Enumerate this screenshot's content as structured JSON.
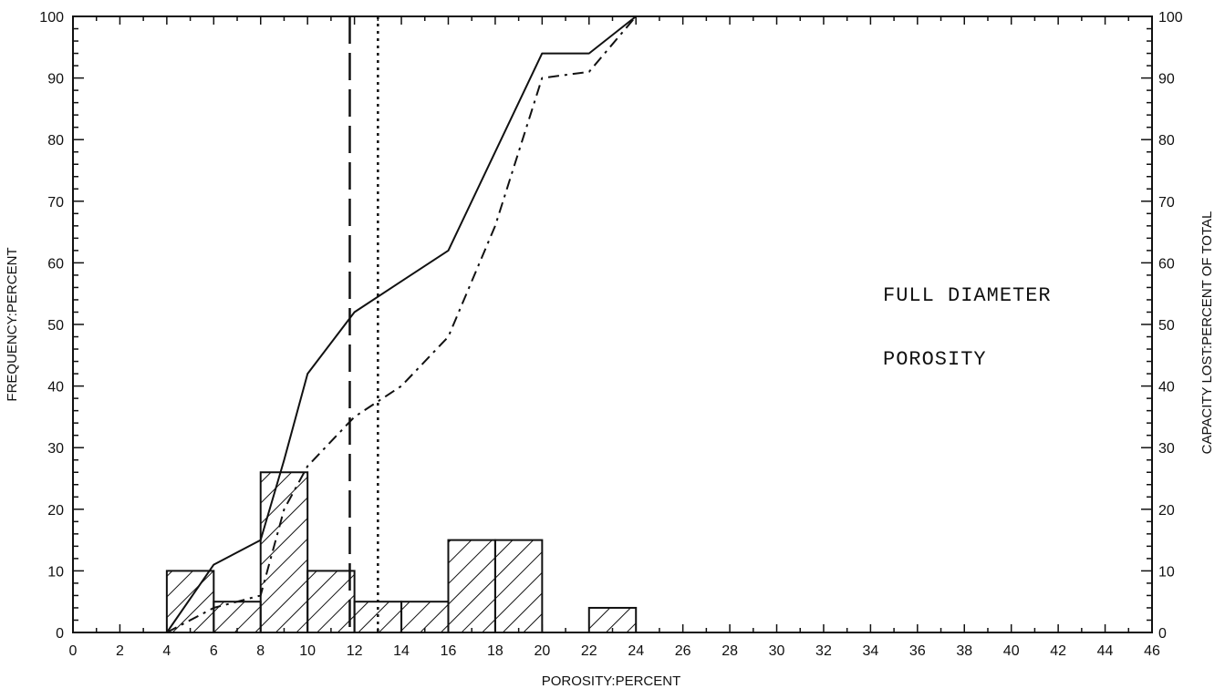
{
  "chart_data": {
    "type": "bar",
    "xlabel": "POROSITY:PERCENT",
    "ylabel": "FREQUENCY:PERCENT",
    "y2label": "CAPACITY LOST:PERCENT OF TOTAL",
    "xlim": [
      0,
      46
    ],
    "ylim": [
      0,
      100
    ],
    "y2lim": [
      0,
      100
    ],
    "x_ticks": [
      0,
      2,
      4,
      6,
      8,
      10,
      12,
      14,
      16,
      18,
      20,
      22,
      24,
      26,
      28,
      30,
      32,
      34,
      36,
      38,
      40,
      42,
      44,
      46
    ],
    "y_ticks": [
      0,
      10,
      20,
      30,
      40,
      50,
      60,
      70,
      80,
      90,
      100
    ],
    "y2_ticks": [
      0,
      10,
      20,
      30,
      40,
      50,
      60,
      70,
      80,
      90,
      100
    ],
    "histogram": [
      {
        "x0": 4,
        "x1": 6,
        "value": 10
      },
      {
        "x0": 6,
        "x1": 8,
        "value": 5
      },
      {
        "x0": 8,
        "x1": 10,
        "value": 26
      },
      {
        "x0": 10,
        "x1": 12,
        "value": 10
      },
      {
        "x0": 12,
        "x1": 14,
        "value": 5
      },
      {
        "x0": 14,
        "x1": 16,
        "value": 5
      },
      {
        "x0": 16,
        "x1": 18,
        "value": 15
      },
      {
        "x0": 18,
        "x1": 20,
        "value": 15
      },
      {
        "x0": 22,
        "x1": 24,
        "value": 4
      }
    ],
    "series": [
      {
        "style": "solid",
        "points": [
          [
            4,
            0
          ],
          [
            6,
            11
          ],
          [
            8,
            15
          ],
          [
            9,
            28
          ],
          [
            10,
            42
          ],
          [
            12,
            52
          ],
          [
            14,
            57
          ],
          [
            16,
            62
          ],
          [
            18,
            78
          ],
          [
            20,
            94
          ],
          [
            22,
            94
          ],
          [
            24,
            100
          ]
        ]
      },
      {
        "style": "dash-dot",
        "points": [
          [
            4,
            0
          ],
          [
            6,
            4
          ],
          [
            8,
            6
          ],
          [
            9,
            20
          ],
          [
            10,
            27
          ],
          [
            12,
            35
          ],
          [
            14,
            40
          ],
          [
            16,
            48
          ],
          [
            18,
            66
          ],
          [
            20,
            90
          ],
          [
            22,
            91
          ],
          [
            24,
            100
          ]
        ]
      }
    ],
    "vertical_lines": [
      {
        "x": 11.8,
        "style": "dashed"
      },
      {
        "x": 13.0,
        "style": "dotted"
      }
    ],
    "annotations": [
      "FULL DIAMETER",
      "POROSITY"
    ]
  }
}
